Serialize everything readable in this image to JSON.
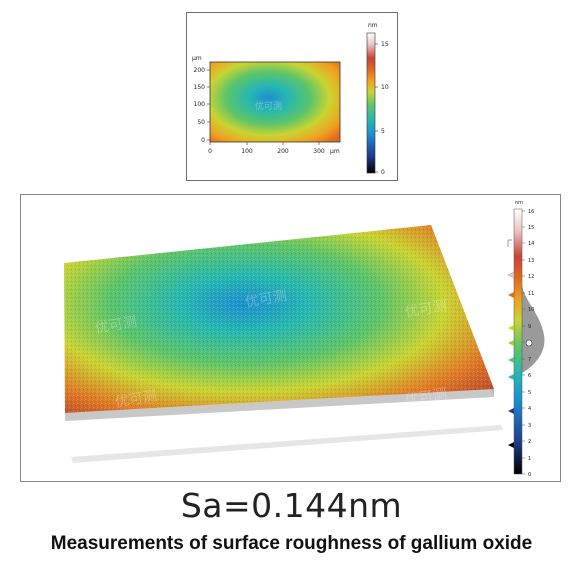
{
  "figure": {
    "sa_label": "Sa=0.144nm",
    "caption": "Measurements of surface roughness of gallium oxide"
  },
  "height_map_2d": {
    "unit_label": "nm",
    "y_axis_unit": "µm",
    "x_axis_unit": "µm",
    "x_ticks": [
      "0",
      "100",
      "200",
      "300"
    ],
    "y_ticks": [
      "0",
      "50",
      "100",
      "150",
      "200"
    ],
    "colorbar_ticks": [
      "0",
      "5",
      "10",
      "15"
    ],
    "watermark": "优可测"
  },
  "surface_3d": {
    "unit_label": "nm",
    "colorbar_ticks": [
      "0",
      "1",
      "2",
      "3",
      "4",
      "5",
      "6",
      "7",
      "8",
      "9",
      "10",
      "11",
      "12",
      "13",
      "14",
      "15",
      "16"
    ],
    "watermark": "优可测"
  },
  "colors": {
    "scale": [
      "#000000",
      "#203a8c",
      "#1c8fd0",
      "#27b8b0",
      "#5cc46a",
      "#c9d432",
      "#f0a020",
      "#e06a20",
      "#c8443a",
      "#e9c8c4",
      "#ffffff"
    ],
    "frame": "#6f6f6f"
  }
}
